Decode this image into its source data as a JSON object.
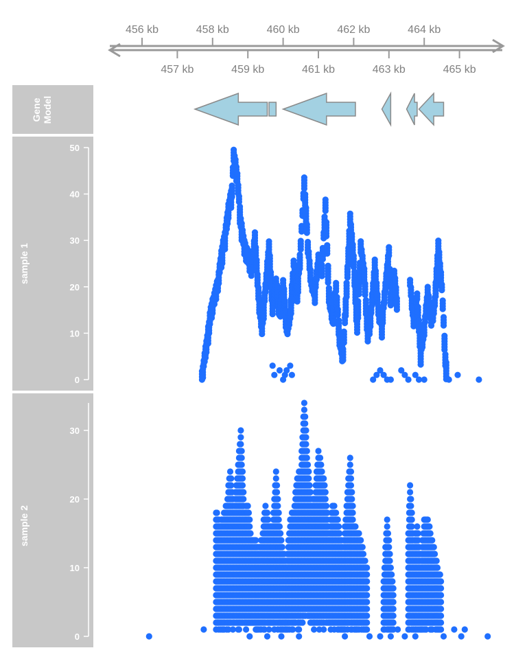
{
  "chart_data": {
    "type": "scatter",
    "genome_axis": {
      "unit": "kb",
      "tick_labels_top": [
        "456 kb",
        "458 kb",
        "460 kb",
        "462 kb",
        "464 kb"
      ],
      "tick_labels_bottom": [
        "457 kb",
        "459 kb",
        "461 kb",
        "463 kb",
        "465 kb"
      ],
      "ticks_kb_top": [
        456,
        458,
        460,
        462,
        464
      ],
      "ticks_kb_bottom": [
        457,
        459,
        461,
        463,
        465
      ],
      "xlim": [
        455.0,
        466.2
      ]
    },
    "tracks": {
      "gene_model": {
        "label_line1": "Gene",
        "label_line2": "Model",
        "fill_color": "#a3d1e2",
        "stroke_color": "#8a8a8a",
        "features": [
          {
            "start": 457.5,
            "end": 460.0,
            "strand": "-",
            "segments": [
              [
                457.5,
                459.55
              ],
              [
                459.6,
                459.8
              ]
            ]
          },
          {
            "start": 460.0,
            "end": 462.05,
            "strand": "-"
          },
          {
            "start": 462.8,
            "end": 463.05,
            "strand": "-"
          },
          {
            "start": 463.5,
            "end": 463.8,
            "strand": "-"
          },
          {
            "start": 463.85,
            "end": 464.55,
            "strand": "-"
          }
        ]
      },
      "samples": [
        {
          "label": "sample 1",
          "ylim": [
            0,
            50
          ],
          "yticks": [
            0,
            10,
            20,
            30,
            40,
            50
          ],
          "ytick_labels": [
            "0",
            "10",
            "20",
            "30",
            "40",
            "50"
          ],
          "point_color": "#1f6fff",
          "profile": [
            [
              456.9,
              0
            ],
            [
              457.7,
              2
            ],
            [
              457.85,
              10
            ],
            [
              457.95,
              16
            ],
            [
              458.05,
              19
            ],
            [
              458.15,
              22
            ],
            [
              458.25,
              28
            ],
            [
              458.35,
              32
            ],
            [
              458.45,
              38
            ],
            [
              458.55,
              42
            ],
            [
              458.6,
              50
            ],
            [
              458.7,
              45
            ],
            [
              458.8,
              35
            ],
            [
              458.9,
              30
            ],
            [
              459.0,
              28
            ],
            [
              459.1,
              24
            ],
            [
              459.2,
              32
            ],
            [
              459.3,
              20
            ],
            [
              459.4,
              12
            ],
            [
              459.5,
              21
            ],
            [
              459.6,
              30
            ],
            [
              459.7,
              17
            ],
            [
              459.8,
              22
            ],
            [
              459.9,
              16
            ],
            [
              460.0,
              22
            ],
            [
              460.1,
              13
            ],
            [
              460.2,
              15
            ],
            [
              460.3,
              26
            ],
            [
              460.4,
              20
            ],
            [
              460.5,
              30
            ],
            [
              460.6,
              44
            ],
            [
              460.7,
              30
            ],
            [
              460.8,
              22
            ],
            [
              460.9,
              20
            ],
            [
              461.0,
              27
            ],
            [
              461.1,
              25
            ],
            [
              461.2,
              39
            ],
            [
              461.3,
              20
            ],
            [
              461.4,
              14
            ],
            [
              461.5,
              21
            ],
            [
              461.6,
              10
            ],
            [
              461.7,
              7
            ],
            [
              461.8,
              21
            ],
            [
              461.9,
              36
            ],
            [
              462.0,
              27
            ],
            [
              462.1,
              13
            ],
            [
              462.2,
              30
            ],
            [
              462.3,
              24
            ],
            [
              462.4,
              11
            ],
            [
              462.5,
              16
            ],
            [
              462.6,
              26
            ],
            [
              462.7,
              16
            ],
            [
              462.8,
              13
            ],
            [
              463.0,
              29
            ],
            [
              463.05,
              19
            ],
            [
              463.15,
              24
            ],
            [
              463.25,
              16
            ],
            [
              463.6,
              22
            ],
            [
              463.7,
              14
            ],
            [
              463.8,
              19
            ],
            [
              463.9,
              7
            ],
            [
              464.0,
              12
            ],
            [
              464.1,
              20
            ],
            [
              464.2,
              14
            ],
            [
              464.3,
              18
            ],
            [
              464.4,
              30
            ],
            [
              464.5,
              21
            ],
            [
              464.6,
              6
            ],
            [
              464.65,
              2
            ]
          ],
          "sparse_points": [
            [
              459.7,
              3
            ],
            [
              459.75,
              1
            ],
            [
              459.9,
              2
            ],
            [
              460.0,
              0
            ],
            [
              460.05,
              1
            ],
            [
              460.1,
              2
            ],
            [
              460.2,
              3
            ],
            [
              460.25,
              1
            ],
            [
              462.55,
              0
            ],
            [
              462.65,
              1
            ],
            [
              462.75,
              2
            ],
            [
              462.85,
              1
            ],
            [
              462.95,
              0
            ],
            [
              463.05,
              0
            ],
            [
              463.35,
              2
            ],
            [
              463.45,
              1
            ],
            [
              463.55,
              0
            ],
            [
              463.75,
              1
            ],
            [
              463.85,
              0
            ],
            [
              464.0,
              0
            ],
            [
              464.7,
              0
            ],
            [
              464.95,
              1
            ],
            [
              465.55,
              0
            ]
          ]
        },
        {
          "label": "sample 2",
          "ylim": [
            0,
            34
          ],
          "yticks": [
            0,
            10,
            20,
            30
          ],
          "ytick_labels": [
            "0",
            "10",
            "20",
            "30"
          ],
          "point_color": "#1f6fff",
          "profile": [
            [
              458.1,
              18
            ],
            [
              458.2,
              16
            ],
            [
              458.3,
              17
            ],
            [
              458.4,
              19
            ],
            [
              458.5,
              24
            ],
            [
              458.6,
              18
            ],
            [
              458.7,
              23
            ],
            [
              458.8,
              30
            ],
            [
              458.9,
              18
            ],
            [
              459.0,
              19
            ],
            [
              459.1,
              14
            ],
            [
              459.2,
              14
            ],
            [
              459.3,
              12
            ],
            [
              459.4,
              14
            ],
            [
              459.5,
              19
            ],
            [
              459.6,
              16
            ],
            [
              459.7,
              16
            ],
            [
              459.8,
              24
            ],
            [
              459.9,
              16
            ],
            [
              460.0,
              12
            ],
            [
              460.1,
              10
            ],
            [
              460.2,
              17
            ],
            [
              460.3,
              18
            ],
            [
              460.4,
              23
            ],
            [
              460.5,
              24
            ],
            [
              460.6,
              34
            ],
            [
              460.7,
              25
            ],
            [
              460.8,
              19
            ],
            [
              460.9,
              20
            ],
            [
              461.0,
              27
            ],
            [
              461.1,
              24
            ],
            [
              461.2,
              21
            ],
            [
              461.3,
              14
            ],
            [
              461.4,
              19
            ],
            [
              461.5,
              18
            ],
            [
              461.6,
              15
            ],
            [
              461.7,
              12
            ],
            [
              461.8,
              19
            ],
            [
              461.9,
              26
            ],
            [
              462.0,
              16
            ],
            [
              462.1,
              15
            ],
            [
              462.2,
              14
            ],
            [
              462.3,
              11
            ],
            [
              462.4,
              9
            ],
            [
              462.85,
              8
            ],
            [
              462.95,
              17
            ],
            [
              463.05,
              10
            ],
            [
              463.15,
              6
            ],
            [
              463.55,
              15
            ],
            [
              463.6,
              22
            ],
            [
              463.7,
              13
            ],
            [
              463.8,
              16
            ],
            [
              463.9,
              10
            ],
            [
              464.0,
              17
            ],
            [
              464.1,
              17
            ],
            [
              464.2,
              14
            ],
            [
              464.3,
              12
            ],
            [
              464.4,
              9
            ],
            [
              464.5,
              8
            ]
          ],
          "sparse_points": [
            [
              456.2,
              0
            ],
            [
              457.75,
              1
            ],
            [
              458.15,
              2
            ],
            [
              458.45,
              1
            ],
            [
              459.05,
              0
            ],
            [
              459.25,
              1
            ],
            [
              459.55,
              0
            ],
            [
              459.75,
              1
            ],
            [
              459.95,
              0
            ],
            [
              460.05,
              2
            ],
            [
              460.25,
              1
            ],
            [
              460.45,
              0
            ],
            [
              461.15,
              1
            ],
            [
              461.75,
              0
            ],
            [
              462.45,
              0
            ],
            [
              462.75,
              0
            ],
            [
              463.05,
              0
            ],
            [
              463.25,
              1
            ],
            [
              463.45,
              0
            ],
            [
              463.75,
              0
            ],
            [
              464.05,
              1
            ],
            [
              464.55,
              0
            ],
            [
              464.85,
              1
            ],
            [
              465.05,
              0
            ],
            [
              465.15,
              1
            ],
            [
              465.8,
              0
            ]
          ]
        }
      ]
    },
    "colors": {
      "panel_background": "#c8c8c8",
      "axis_line": "#999999",
      "label_text": "#808080"
    }
  }
}
